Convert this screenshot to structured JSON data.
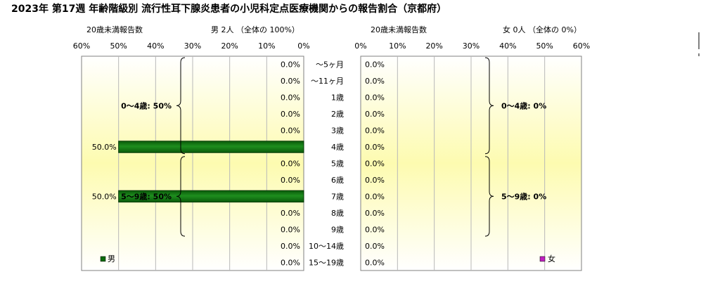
{
  "title": "2023年 第17週 年齢階級別 流行性耳下腺炎患者の小児科定点医療機関からの報告割合（京都府）",
  "chart_data": {
    "type": "bar",
    "categories": [
      "～5ヶ月",
      "～11ヶ月",
      "1歳",
      "2歳",
      "3歳",
      "4歳",
      "5歳",
      "6歳",
      "7歳",
      "8歳",
      "9歳",
      "10～14歳",
      "15～19歳"
    ],
    "xlim": [
      0,
      60
    ],
    "xticks": [
      "0%",
      "10%",
      "20%",
      "30%",
      "40%",
      "50%",
      "60%"
    ],
    "panels": [
      {
        "side": "left",
        "axis_caption": "20歳未満報告数",
        "header": "男 2人 （全体の 100%）",
        "legend": "男",
        "color": "#0a6b0a",
        "values": [
          0,
          0,
          0,
          0,
          0,
          50,
          0,
          0,
          50,
          0,
          0,
          0,
          0
        ],
        "labels": [
          "0.0%",
          "0.0%",
          "0.0%",
          "0.0%",
          "0.0%",
          "50.0%",
          "0.0%",
          "0.0%",
          "50.0%",
          "0.0%",
          "0.0%",
          "0.0%",
          "0.0%"
        ],
        "groups": [
          {
            "label": "0～4歳: 50%",
            "from": 0,
            "to": 5
          },
          {
            "label": "5～9歳: 50%",
            "from": 6,
            "to": 10
          }
        ]
      },
      {
        "side": "right",
        "axis_caption": "20歳未満報告数",
        "header": "女 0人 （全体の 0%）",
        "legend": "女",
        "color": "#c020c0",
        "values": [
          0,
          0,
          0,
          0,
          0,
          0,
          0,
          0,
          0,
          0,
          0,
          0,
          0
        ],
        "labels": [
          "0.0%",
          "0.0%",
          "0.0%",
          "0.0%",
          "0.0%",
          "0.0%",
          "0.0%",
          "0.0%",
          "0.0%",
          "0.0%",
          "0.0%",
          "0.0%",
          "0.0%"
        ],
        "groups": [
          {
            "label": "0～4歳: 0%",
            "from": 0,
            "to": 5
          },
          {
            "label": "5～9歳: 0%",
            "from": 6,
            "to": 10
          }
        ]
      }
    ]
  }
}
